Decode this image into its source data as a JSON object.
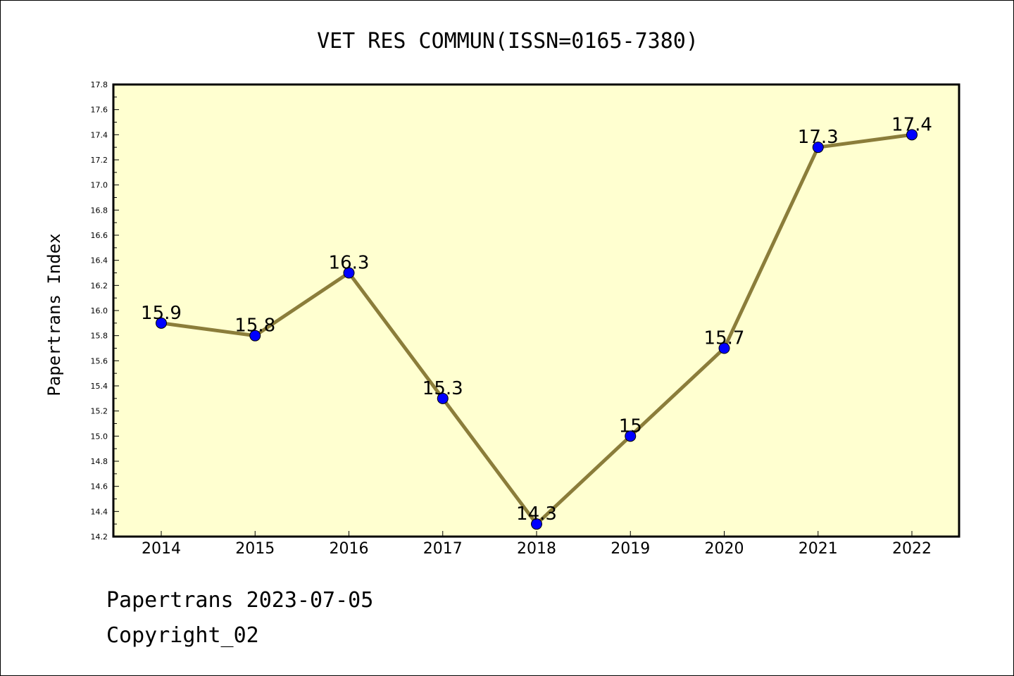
{
  "chart_data": {
    "type": "line",
    "title": "VET RES COMMUN(ISSN=0165-7380)",
    "ylabel": "Papertrans Index",
    "xlabel": "",
    "x": [
      "2014",
      "2015",
      "2016",
      "2017",
      "2018",
      "2019",
      "2020",
      "2021",
      "2022"
    ],
    "values": [
      15.9,
      15.8,
      16.3,
      15.3,
      14.3,
      15.0,
      15.7,
      17.3,
      17.4
    ],
    "data_labels": [
      "15.9",
      "15.8",
      "16.3",
      "15.3",
      "14.3",
      "15",
      "15.7",
      "17.3",
      "17.4"
    ],
    "ylim": [
      14.2,
      17.8
    ],
    "yticks": [
      "14.2",
      "14.4",
      "14.6",
      "14.8",
      "15.0",
      "15.2",
      "15.4",
      "15.6",
      "15.8",
      "16.0",
      "16.2",
      "16.4",
      "16.6",
      "16.8",
      "17.0",
      "17.2",
      "17.4",
      "17.6",
      "17.8"
    ],
    "grid": false,
    "colors": {
      "plot_background": "#ffffd0",
      "line": "#8b7d3a",
      "marker": "#0000ff"
    }
  },
  "footer": {
    "line1": "Papertrans 2023-07-05",
    "line2": "Copyright_02"
  }
}
